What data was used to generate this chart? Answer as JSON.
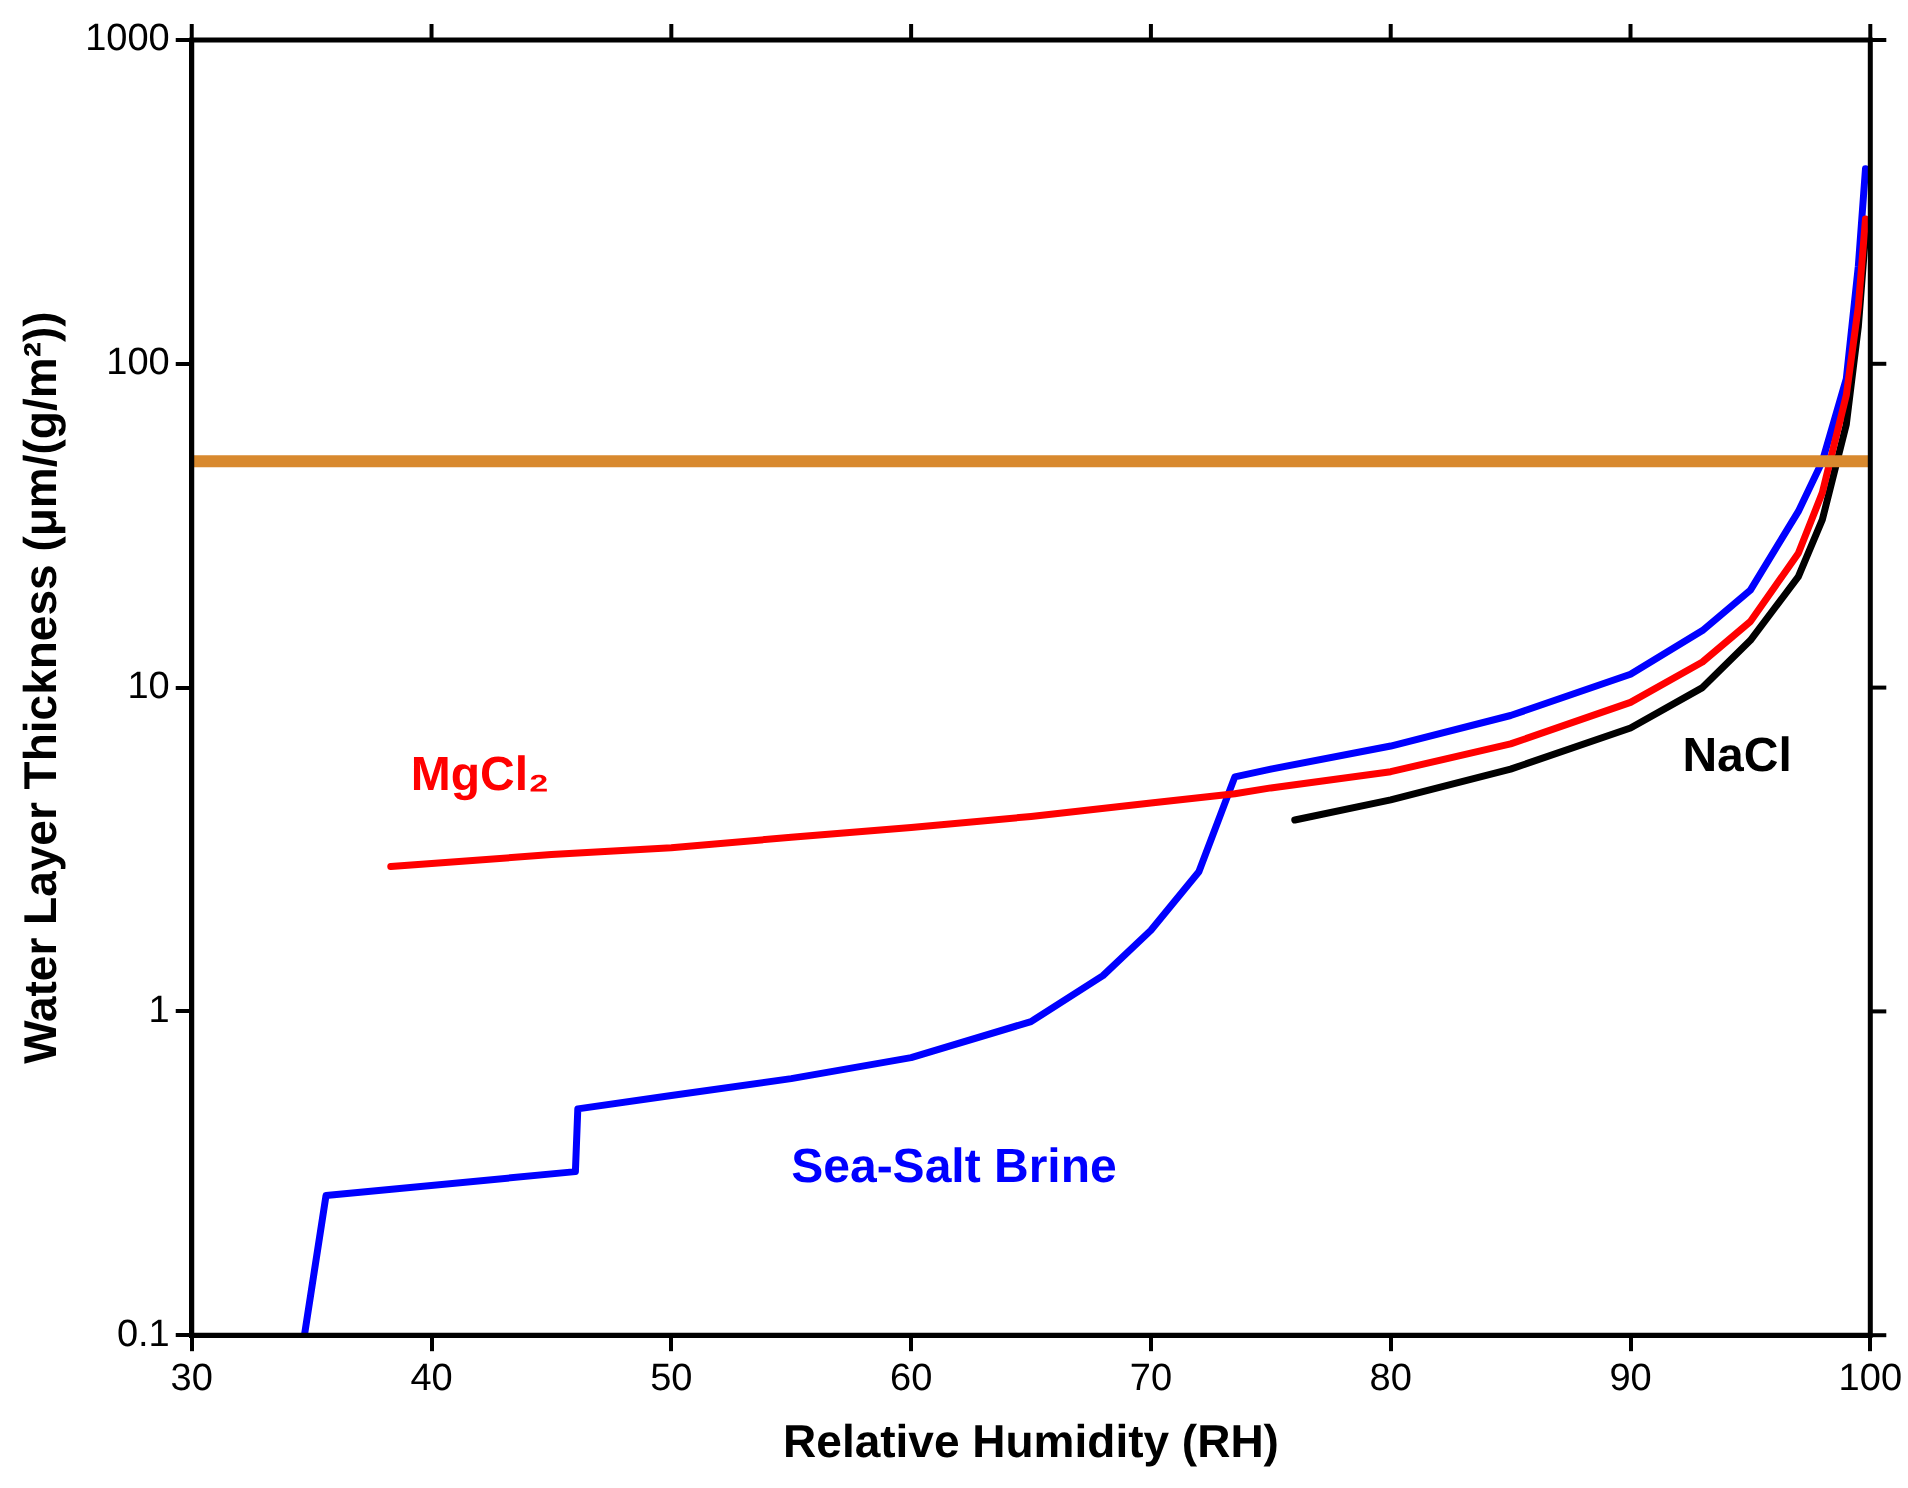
{
  "chart_data": {
    "type": "line",
    "xlabel": "Relative Humidity (RH)",
    "ylabel": "Water Layer Thickness (μm/(g/m²))",
    "log": "y",
    "xlim": [
      30,
      100
    ],
    "xticks": [
      30,
      40,
      50,
      60,
      70,
      80,
      90,
      100
    ],
    "ylim": [
      0.1,
      1000
    ],
    "yticks": [
      0.1,
      1,
      10,
      100,
      1000
    ],
    "grid": false,
    "legend": false,
    "marker": "none",
    "line_style": "solid",
    "series": [
      {
        "name": "MgCl₂",
        "color": "#ff0000",
        "x": [
          38.3,
          45,
          50,
          55,
          60,
          65,
          70,
          73.5,
          75,
          80,
          85,
          90,
          93,
          95,
          97,
          98,
          99,
          99.5,
          99.8
        ],
        "values": [
          2.8,
          3.05,
          3.2,
          3.45,
          3.7,
          4.0,
          4.4,
          4.7,
          4.9,
          5.5,
          6.7,
          9,
          12,
          16,
          26,
          40,
          80,
          150,
          280
        ]
      },
      {
        "name": "NaCl",
        "color": "#000000",
        "x": [
          76,
          80,
          85,
          90,
          93,
          95,
          97,
          98,
          99,
          99.5,
          99.8
        ],
        "values": [
          3.9,
          4.5,
          5.6,
          7.5,
          10,
          14,
          22,
          33,
          65,
          130,
          250
        ]
      },
      {
        "name": "Sea-Salt Brine",
        "color": "#0000ff",
        "x": [
          34.7,
          35.6,
          46,
          46.1,
          50,
          55,
          60,
          65,
          68,
          70,
          72,
          73.5,
          75,
          80,
          85,
          90,
          93,
          95,
          97,
          98,
          99,
          99.5,
          99.8
        ],
        "values": [
          0.1,
          0.27,
          0.32,
          0.5,
          0.55,
          0.62,
          0.72,
          0.93,
          1.29,
          1.78,
          2.7,
          5.3,
          5.6,
          6.6,
          8.2,
          11,
          15,
          20,
          35,
          50,
          90,
          200,
          400
        ]
      }
    ],
    "ref_lines": [
      {
        "axis": "y",
        "value": 50,
        "color": "#d8892e"
      }
    ]
  }
}
